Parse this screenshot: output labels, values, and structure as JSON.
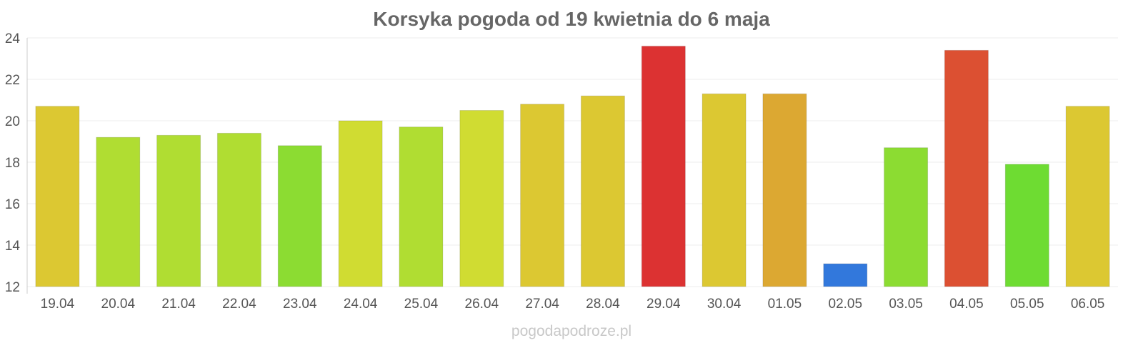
{
  "chart_data": {
    "type": "bar",
    "title": "Korsyka pogoda od 19 kwietnia do 6 maja",
    "xlabel": "",
    "ylabel": "",
    "ylim": [
      12,
      24
    ],
    "yticks": [
      12,
      14,
      16,
      18,
      20,
      22,
      24
    ],
    "grid": true,
    "legend": "none",
    "categories": [
      "19.04",
      "20.04",
      "21.04",
      "22.04",
      "23.04",
      "24.04",
      "25.04",
      "26.04",
      "27.04",
      "28.04",
      "29.04",
      "30.04",
      "01.05",
      "02.05",
      "03.05",
      "04.05",
      "05.05",
      "06.05"
    ],
    "values": [
      20.7,
      19.2,
      19.3,
      19.4,
      18.8,
      20.0,
      19.7,
      20.5,
      20.8,
      21.2,
      23.6,
      21.3,
      21.3,
      13.1,
      18.7,
      23.4,
      17.9,
      20.7
    ],
    "colors": [
      "#dcc832",
      "#b0dd32",
      "#b0dd32",
      "#b0dd32",
      "#8cdc32",
      "#d0dc32",
      "#b0dd32",
      "#d0dc32",
      "#dcc832",
      "#dcc832",
      "#dc3232",
      "#dcc832",
      "#dca832",
      "#3278dc",
      "#8cdc32",
      "#dc5032",
      "#6edc32",
      "#dcc832"
    ]
  },
  "watermark": "pogodapodroze.pl"
}
